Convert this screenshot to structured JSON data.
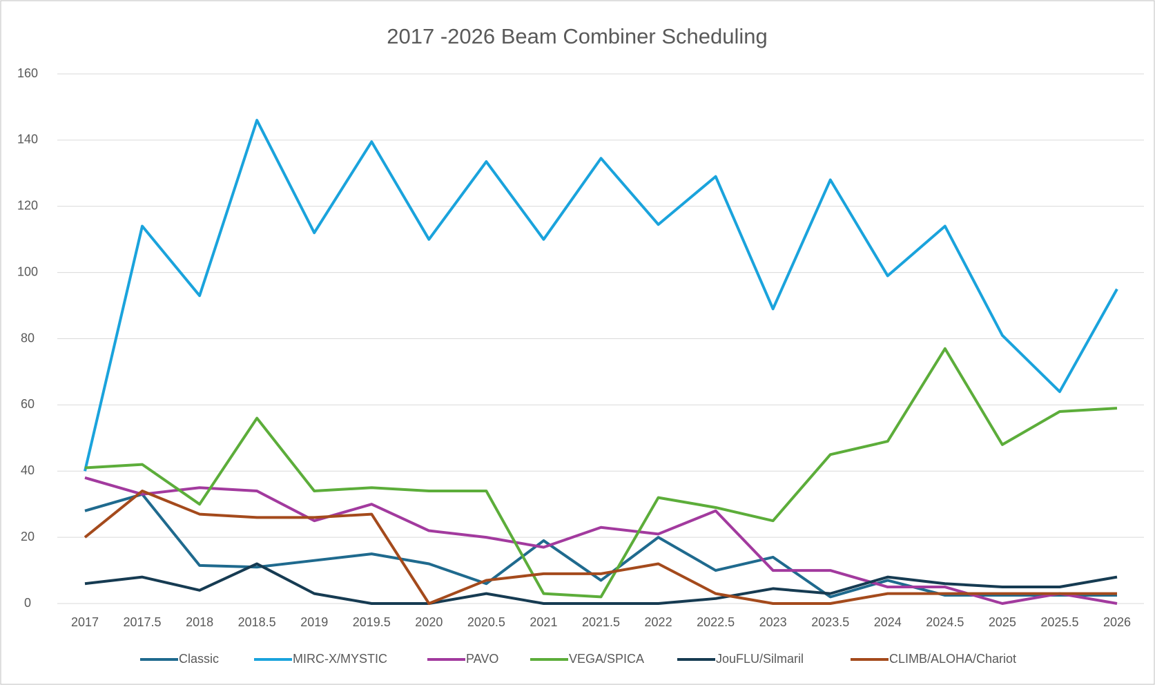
{
  "chart_data": {
    "type": "line",
    "title": "2017 -2026 Beam Combiner Scheduling",
    "categories": [
      "2017",
      "2017.5",
      "2018",
      "2018.5",
      "2019",
      "2019.5",
      "2020",
      "2020.5",
      "2021",
      "2021.5",
      "2022",
      "2022.5",
      "2023",
      "2023.5",
      "2024",
      "2024.5",
      "2025",
      "2025.5",
      "2026"
    ],
    "series": [
      {
        "name": "Classic",
        "color": "#1f6a8e",
        "values": [
          28,
          33,
          11.5,
          11,
          13,
          15,
          12,
          6,
          19,
          7,
          20,
          10,
          14,
          2,
          7,
          2.5,
          2.5,
          2.5,
          2.5
        ]
      },
      {
        "name": "MIRC-X/MYSTIC",
        "color": "#1aa3dc",
        "values": [
          40,
          114,
          93,
          146,
          112,
          139.5,
          110,
          133.5,
          110,
          134.5,
          114.5,
          129,
          89,
          128,
          99,
          114,
          81,
          64,
          95
        ]
      },
      {
        "name": "PAVO",
        "color": "#a23a9e",
        "values": [
          38,
          33,
          35,
          34,
          25,
          30,
          22,
          20,
          17,
          23,
          21,
          28,
          10,
          10,
          5,
          5,
          0,
          3,
          0
        ]
      },
      {
        "name": "VEGA/SPICA",
        "color": "#5cad3a",
        "values": [
          41,
          42,
          30,
          56,
          34,
          35,
          34,
          34,
          3,
          2,
          32,
          29,
          25,
          45,
          49,
          77,
          48,
          58,
          59
        ]
      },
      {
        "name": "JouFLU/Silmaril",
        "color": "#163b52",
        "values": [
          6,
          8,
          4,
          12,
          3,
          0,
          0,
          3,
          0,
          0,
          0,
          1.5,
          4.5,
          3,
          8,
          6,
          5,
          5,
          8
        ]
      },
      {
        "name": "CLIMB/ALOHA/Chariot",
        "color": "#a44a1c",
        "values": [
          20,
          34,
          27,
          26,
          26,
          27,
          0,
          7,
          9,
          9,
          12,
          3,
          0,
          0,
          3,
          3,
          3,
          3,
          3
        ]
      }
    ],
    "ylim": [
      0,
      160
    ],
    "yticks": [
      0,
      20,
      40,
      60,
      80,
      100,
      120,
      140,
      160
    ],
    "grid": true,
    "legend": "bottom"
  }
}
